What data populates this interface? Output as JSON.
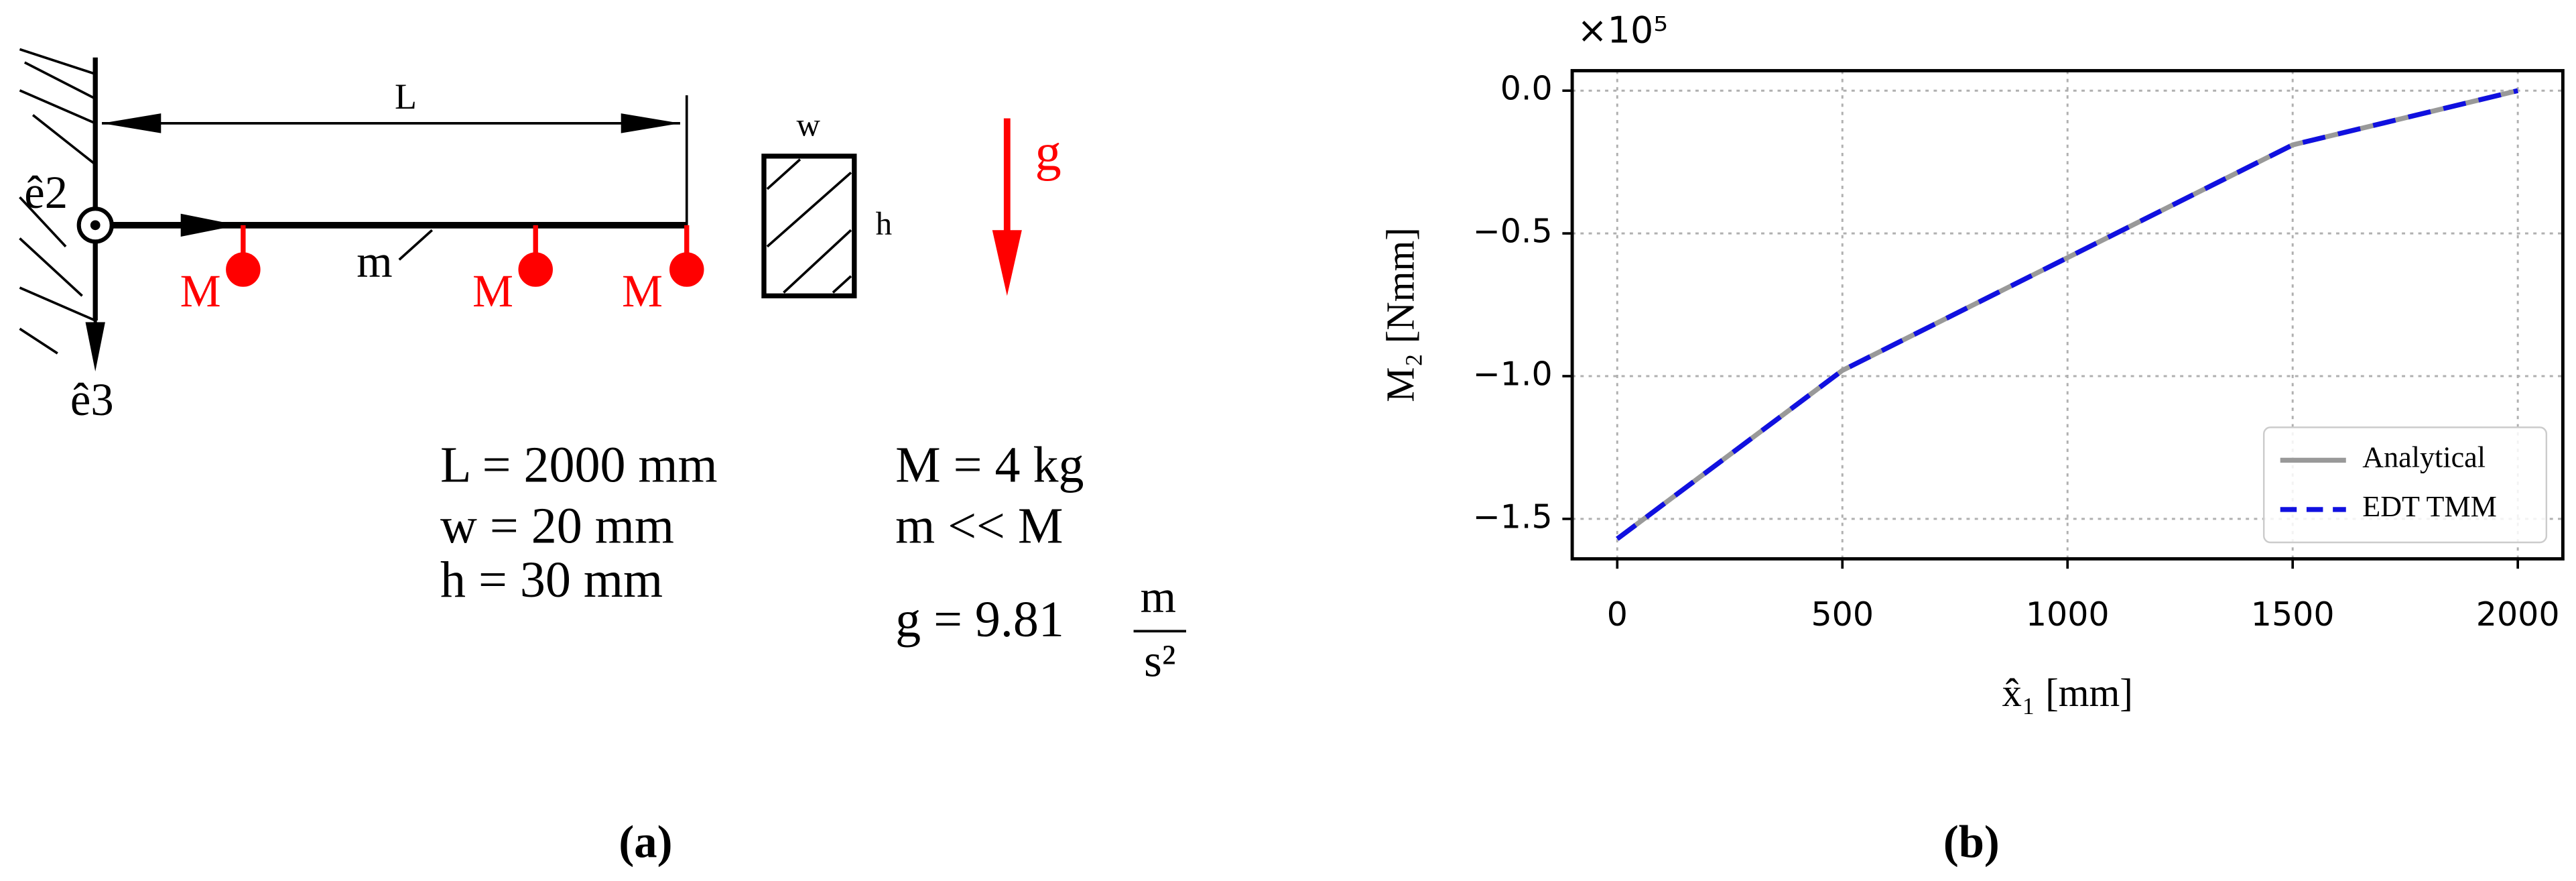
{
  "diagram": {
    "length_label": "L",
    "width_label": "w",
    "height_label": "h",
    "gravity_label": "g",
    "axis_e2": "ê2",
    "axis_e3": "ê3",
    "mass_labels": [
      "M",
      "M",
      "M"
    ],
    "beam_mass_label": "m",
    "equations_left": [
      "L = 2000 mm",
      "w = 20 mm",
      "h = 30 mm"
    ],
    "equations_right": [
      "M = 4 kg",
      "m << M",
      "g = 9.81"
    ],
    "gravity_unit_numerator": "m",
    "gravity_unit_denominator": "s²",
    "caption": "(a)"
  },
  "chart_data": {
    "type": "line",
    "caption": "(b)",
    "offset_label": "×10⁵",
    "x_label": "x̂₁ [mm]",
    "y_label": "M₂ [Nmm]",
    "x": [
      0,
      500,
      1500,
      2000
    ],
    "series": [
      {
        "name": "Analytical",
        "color": "#999999",
        "dash": "solid",
        "values": [
          -1.57,
          -0.98,
          -0.19,
          0
        ]
      },
      {
        "name": "EDT TMM",
        "color": "#1010e0",
        "dash": "dashed",
        "values": [
          -1.57,
          -0.98,
          -0.19,
          0
        ]
      }
    ],
    "xlim": [
      -100,
      2100
    ],
    "ylim": [
      -1.64,
      0.07
    ],
    "xticks": [
      0,
      500,
      1000,
      1500,
      2000
    ],
    "yticks": [
      {
        "value": 0,
        "label": "0.0"
      },
      {
        "value": -0.5,
        "label": "−0.5"
      },
      {
        "value": -1,
        "label": "−1.0"
      },
      {
        "value": -1.5,
        "label": "−1.5"
      }
    ],
    "grid": true,
    "legend": "lower right"
  }
}
